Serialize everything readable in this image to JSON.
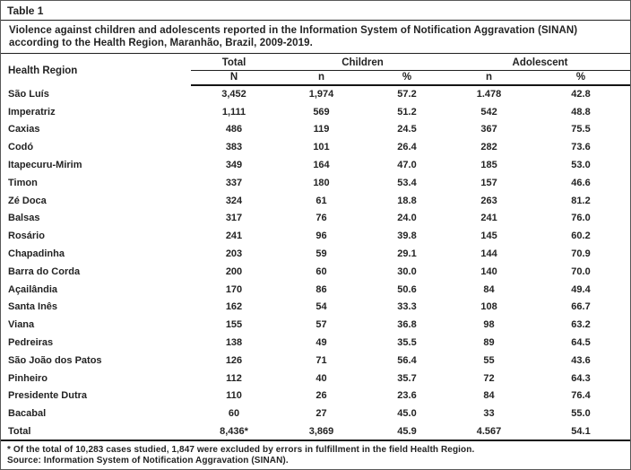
{
  "page": {
    "label": "Table 1",
    "caption": "Violence against children and adolescents reported in the Information System of Notification Aggravation (SINAN) according to the Health Region, Maranhão, Brazil, 2009-2019."
  },
  "table": {
    "region_header": "Health Region",
    "groups": [
      {
        "label": "Total",
        "cols": [
          "N"
        ]
      },
      {
        "label": "Children",
        "cols": [
          "n",
          "%"
        ]
      },
      {
        "label": "Adolescent",
        "cols": [
          "n",
          "%"
        ]
      }
    ],
    "rows": [
      {
        "region": "São Luís",
        "values": [
          "3,452",
          "1,974",
          "57.2",
          "1.478",
          "42.8"
        ]
      },
      {
        "region": "Imperatriz",
        "values": [
          "1,111",
          "569",
          "51.2",
          "542",
          "48.8"
        ]
      },
      {
        "region": "Caxias",
        "values": [
          "486",
          "119",
          "24.5",
          "367",
          "75.5"
        ]
      },
      {
        "region": "Codó",
        "values": [
          "383",
          "101",
          "26.4",
          "282",
          "73.6"
        ]
      },
      {
        "region": "Itapecuru-Mirim",
        "values": [
          "349",
          "164",
          "47.0",
          "185",
          "53.0"
        ]
      },
      {
        "region": "Timon",
        "values": [
          "337",
          "180",
          "53.4",
          "157",
          "46.6"
        ]
      },
      {
        "region": "Zé Doca",
        "values": [
          "324",
          "61",
          "18.8",
          "263",
          "81.2"
        ]
      },
      {
        "region": "Balsas",
        "values": [
          "317",
          "76",
          "24.0",
          "241",
          "76.0"
        ]
      },
      {
        "region": "Rosário",
        "values": [
          "241",
          "96",
          "39.8",
          "145",
          "60.2"
        ]
      },
      {
        "region": "Chapadinha",
        "values": [
          "203",
          "59",
          "29.1",
          "144",
          "70.9"
        ]
      },
      {
        "region": "Barra do Corda",
        "values": [
          "200",
          "60",
          "30.0",
          "140",
          "70.0"
        ]
      },
      {
        "region": "Açailândia",
        "values": [
          "170",
          "86",
          "50.6",
          "84",
          "49.4"
        ]
      },
      {
        "region": "Santa Inês",
        "values": [
          "162",
          "54",
          "33.3",
          "108",
          "66.7"
        ]
      },
      {
        "region": "Viana",
        "values": [
          "155",
          "57",
          "36.8",
          "98",
          "63.2"
        ]
      },
      {
        "region": "Pedreiras",
        "values": [
          "138",
          "49",
          "35.5",
          "89",
          "64.5"
        ]
      },
      {
        "region": "São João dos Patos",
        "values": [
          "126",
          "71",
          "56.4",
          "55",
          "43.6"
        ]
      },
      {
        "region": "Pinheiro",
        "values": [
          "112",
          "40",
          "35.7",
          "72",
          "64.3"
        ]
      },
      {
        "region": "Presidente Dutra",
        "values": [
          "110",
          "26",
          "23.6",
          "84",
          "76.4"
        ]
      },
      {
        "region": "Bacabal",
        "values": [
          "60",
          "27",
          "45.0",
          "33",
          "55.0"
        ]
      },
      {
        "region": "Total",
        "values": [
          "8,436*",
          "3,869",
          "45.9",
          "4.567",
          "54.1"
        ]
      }
    ]
  },
  "footnotes": [
    "* Of the total of 10,283 cases studied, 1,847 were excluded by errors in fulfillment in the field Health Region.",
    "Source: Information System of Notification Aggravation (SINAN)."
  ],
  "colors": {
    "text": "#232323",
    "rule": "#1f1f1f",
    "thick_rule": "#141414",
    "background": "#ffffff",
    "border": "#585858"
  }
}
